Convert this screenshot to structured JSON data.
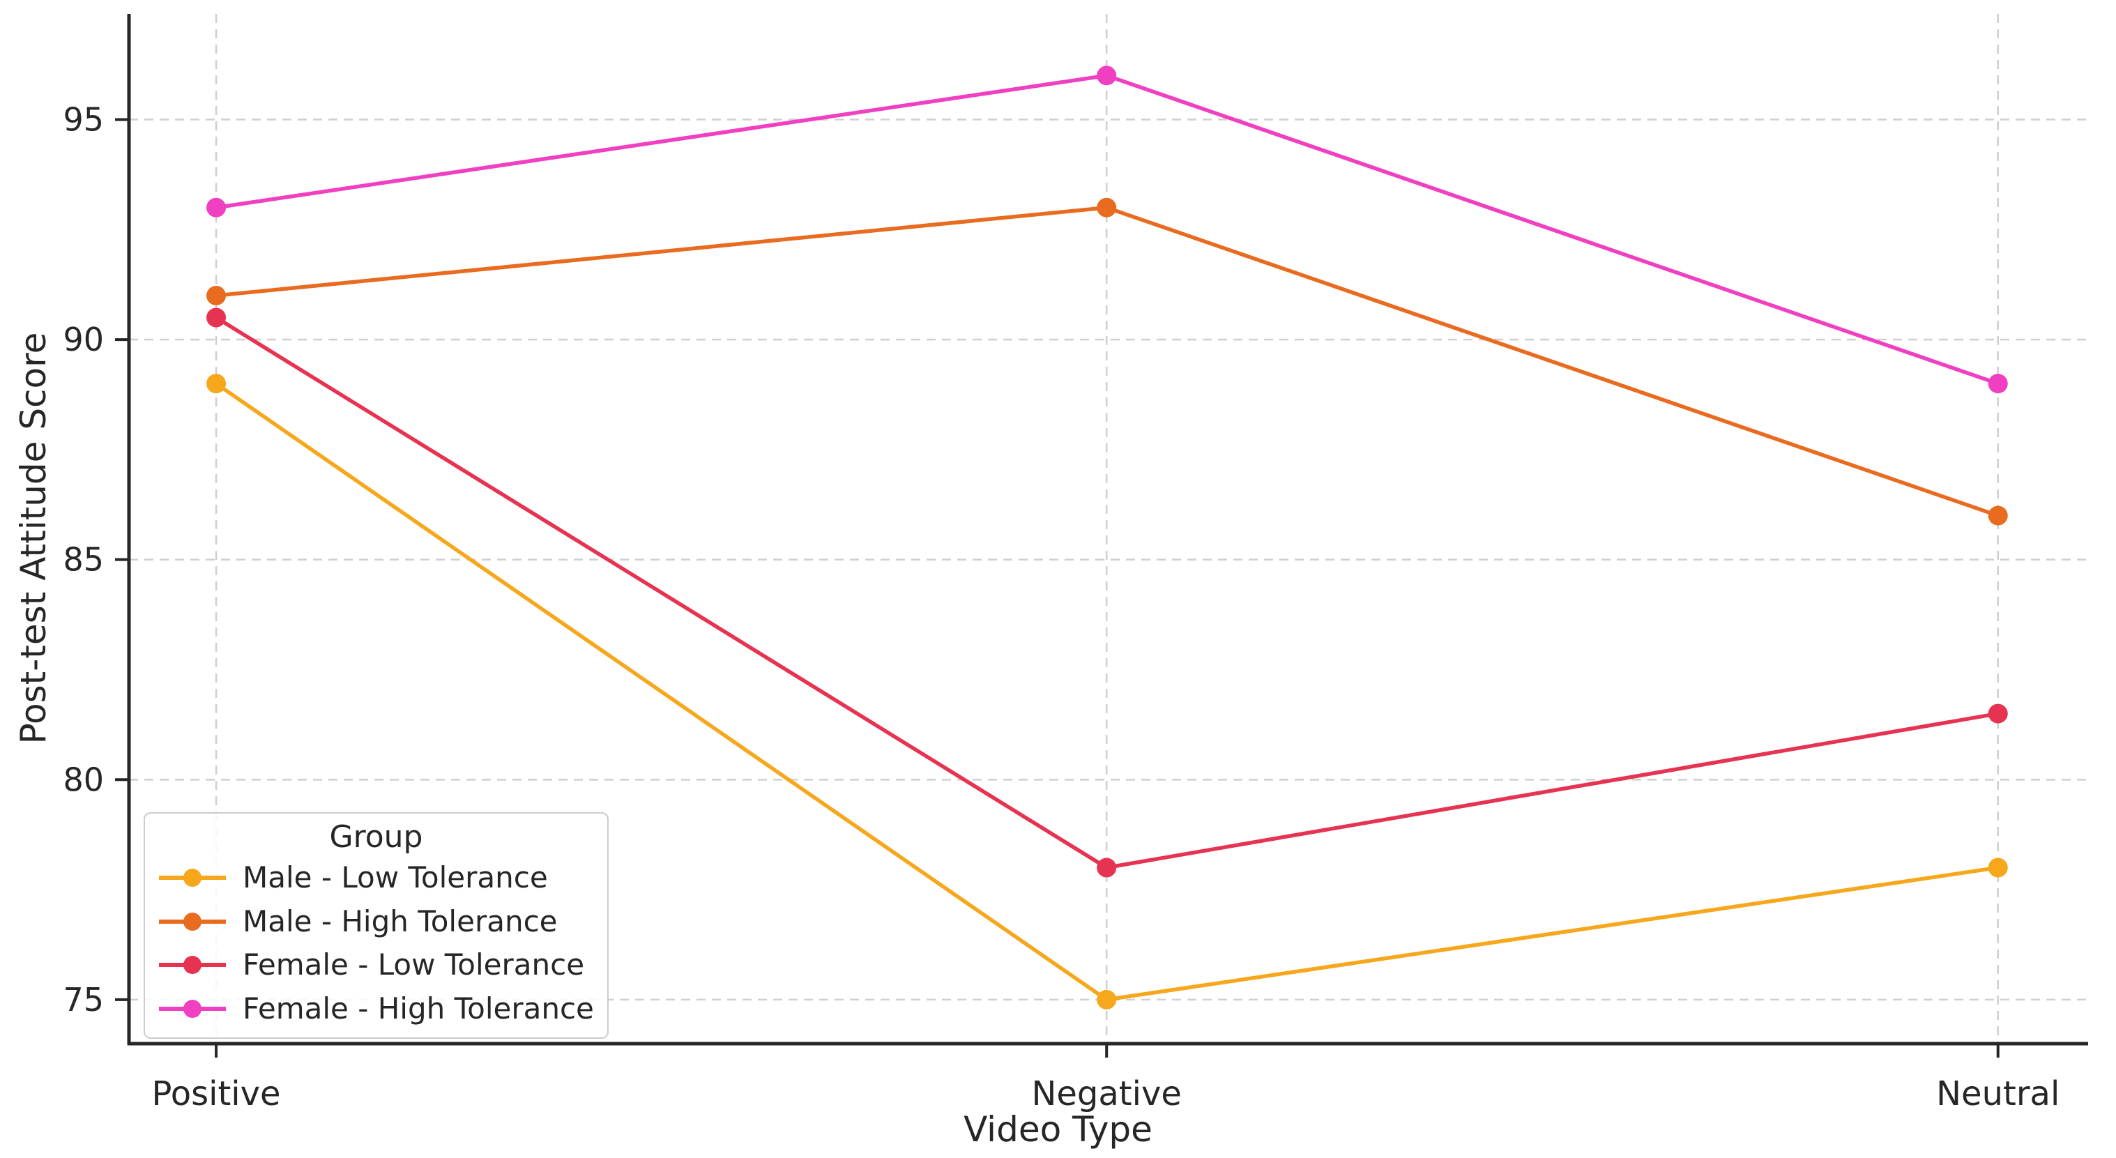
{
  "figure": {
    "background": "#ffffff",
    "text_color": "#262626",
    "grid_color": "#cccccc",
    "spine_color": "#262626"
  },
  "chart_data": {
    "type": "line",
    "title": "",
    "xlabel": "Video Type",
    "ylabel": "Post-test Attitude Score",
    "categories": [
      "Positive",
      "Negative",
      "Neutral"
    ],
    "series": [
      {
        "name": "Male - Low Tolerance",
        "color": "#F6A71C",
        "values": [
          89,
          75,
          78
        ]
      },
      {
        "name": "Male - High Tolerance",
        "color": "#E96B20",
        "values": [
          91,
          93,
          86
        ]
      },
      {
        "name": "Female - Low Tolerance",
        "color": "#E73352",
        "values": [
          90.5,
          78,
          81.5
        ]
      },
      {
        "name": "Female - High Tolerance",
        "color": "#F03FC0",
        "values": [
          93,
          96,
          89
        ]
      }
    ],
    "yticks": [
      75,
      80,
      85,
      90,
      95
    ],
    "ylim": [
      74,
      97.4
    ],
    "grid": "dashed, both axes",
    "legend": {
      "title": "Group",
      "position": "lower left"
    }
  }
}
